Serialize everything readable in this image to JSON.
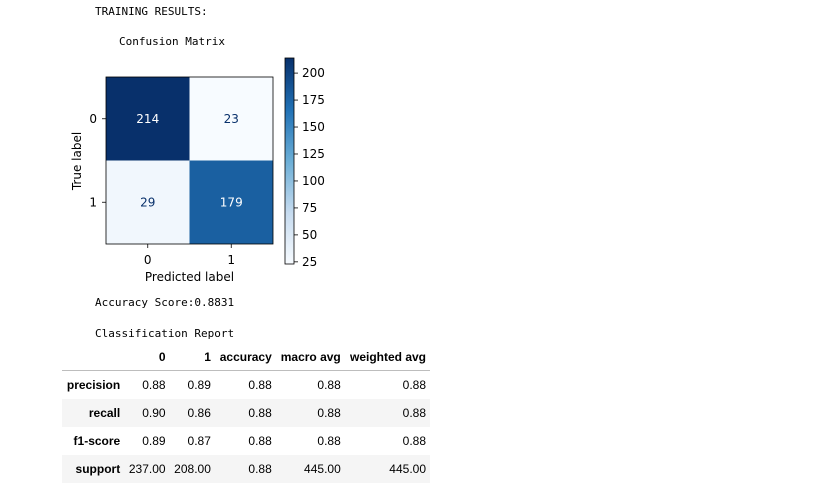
{
  "output": {
    "heading": "TRAINING RESULTS:",
    "accuracy_line": "Accuracy Score:0.8831",
    "report_title": "Classification Report"
  },
  "chart_data": {
    "type": "heatmap",
    "title": "Confusion Matrix",
    "xlabel": "Predicted label",
    "ylabel": "True label",
    "x_ticks": [
      "0",
      "1"
    ],
    "y_ticks": [
      "0",
      "1"
    ],
    "matrix": [
      [
        214,
        23
      ],
      [
        29,
        179
      ]
    ],
    "colormap": "Blues",
    "color_range": [
      23,
      214
    ],
    "colorbar_ticks": [
      25,
      50,
      75,
      100,
      125,
      150,
      175,
      200
    ],
    "grid": false
  },
  "report": {
    "columns": [
      "",
      "0",
      "1",
      "accuracy",
      "macro avg",
      "weighted avg"
    ],
    "rows": [
      {
        "label": "precision",
        "cells": [
          "0.88",
          "0.89",
          "0.88",
          "0.88",
          "0.88"
        ]
      },
      {
        "label": "recall",
        "cells": [
          "0.90",
          "0.86",
          "0.88",
          "0.88",
          "0.88"
        ]
      },
      {
        "label": "f1-score",
        "cells": [
          "0.89",
          "0.87",
          "0.88",
          "0.88",
          "0.88"
        ]
      },
      {
        "label": "support",
        "cells": [
          "237.00",
          "208.00",
          "0.88",
          "445.00",
          "445.00"
        ]
      }
    ]
  }
}
